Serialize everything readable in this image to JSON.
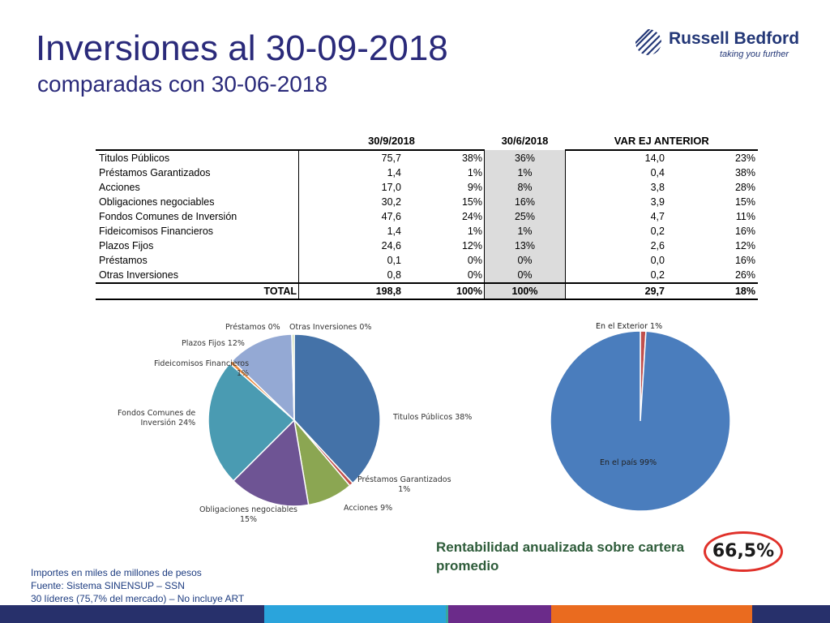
{
  "slide": {
    "title": "Inversiones al 30-09-2018",
    "subtitle": "comparadas con 30-06-2018"
  },
  "logo": {
    "name": "Russell Bedford",
    "tagline": "taking you further",
    "icon": "globe-stripes-icon"
  },
  "table": {
    "headers": [
      "",
      "30/9/2018",
      "30/6/2018",
      "VAR EJ ANTERIOR"
    ],
    "rows": [
      {
        "label": "Titulos Públicos",
        "value": "75,7",
        "pct": "38%",
        "prev_pct": "36%",
        "var": "14,0",
        "var_pct": "23%"
      },
      {
        "label": "Préstamos Garantizados",
        "value": "1,4",
        "pct": "1%",
        "prev_pct": "1%",
        "var": "0,4",
        "var_pct": "38%"
      },
      {
        "label": "Acciones",
        "value": "17,0",
        "pct": "9%",
        "prev_pct": "8%",
        "var": "3,8",
        "var_pct": "28%"
      },
      {
        "label": "Obligaciones negociables",
        "value": "30,2",
        "pct": "15%",
        "prev_pct": "16%",
        "var": "3,9",
        "var_pct": "15%"
      },
      {
        "label": "Fondos Comunes de Inversión",
        "value": "47,6",
        "pct": "24%",
        "prev_pct": "25%",
        "var": "4,7",
        "var_pct": "11%"
      },
      {
        "label": "Fideicomisos Financieros",
        "value": "1,4",
        "pct": "1%",
        "prev_pct": "1%",
        "var": "0,2",
        "var_pct": "16%"
      },
      {
        "label": "Plazos Fijos",
        "value": "24,6",
        "pct": "12%",
        "prev_pct": "13%",
        "var": "2,6",
        "var_pct": "12%"
      },
      {
        "label": "Préstamos",
        "value": "0,1",
        "pct": "0%",
        "prev_pct": "0%",
        "var": "0,0",
        "var_pct": "16%"
      },
      {
        "label": "Otras Inversiones",
        "value": "0,8",
        "pct": "0%",
        "prev_pct": "0%",
        "var": "0,2",
        "var_pct": "26%"
      }
    ],
    "total": {
      "label": "TOTAL",
      "value": "198,8",
      "pct": "100%",
      "prev_pct": "100%",
      "var": "29,7",
      "var_pct": "18%"
    }
  },
  "chart_data": [
    {
      "type": "pie",
      "categories": [
        "Titulos Públicos",
        "Préstamos Garantizados",
        "Acciones",
        "Obligaciones negociables",
        "Fondos Comunes de Inversión",
        "Fideicomisos Financieros",
        "Plazos Fijos",
        "Préstamos",
        "Otras Inversiones"
      ],
      "values": [
        75.7,
        1.4,
        17.0,
        30.2,
        47.6,
        1.4,
        24.6,
        0.1,
        0.8
      ],
      "labels": [
        "Titulos Públicos 38%",
        "Préstamos Garantizados 1%",
        "Acciones 9%",
        "Obligaciones negociables 15%",
        "Fondos Comunes de Inversión 24%",
        "Fideicomisos Financieros 1%",
        "Plazos Fijos 12%",
        "Préstamos 0%",
        "Otras Inversiones 0%"
      ],
      "colors": [
        "#4472a8",
        "#c0504d",
        "#8ba652",
        "#6e5494",
        "#4a9bb2",
        "#e9883c",
        "#94a9d4",
        "#cf8a8a",
        "#c0d59a"
      ]
    },
    {
      "type": "pie",
      "categories": [
        "En el Exterior",
        "En el país"
      ],
      "values": [
        1,
        99
      ],
      "labels": [
        "En el Exterior 1%",
        "En el país 99%"
      ],
      "colors": [
        "#c0504d",
        "#4a7dbd"
      ]
    }
  ],
  "summary": {
    "label": "Rentabilidad anualizada sobre cartera promedio",
    "value": "66,5%"
  },
  "notes": [
    "Importes en miles de millones de pesos",
    "Fuente: Sistema SINENSUP – SSN",
    "30 líderes (75,7% del mercado) – No incluye ART"
  ],
  "footer_colors": [
    "#27306b",
    "#2aa4dc",
    "#3aa7a0",
    "#6b2b8a",
    "#ea6b1f",
    "#27306b"
  ]
}
